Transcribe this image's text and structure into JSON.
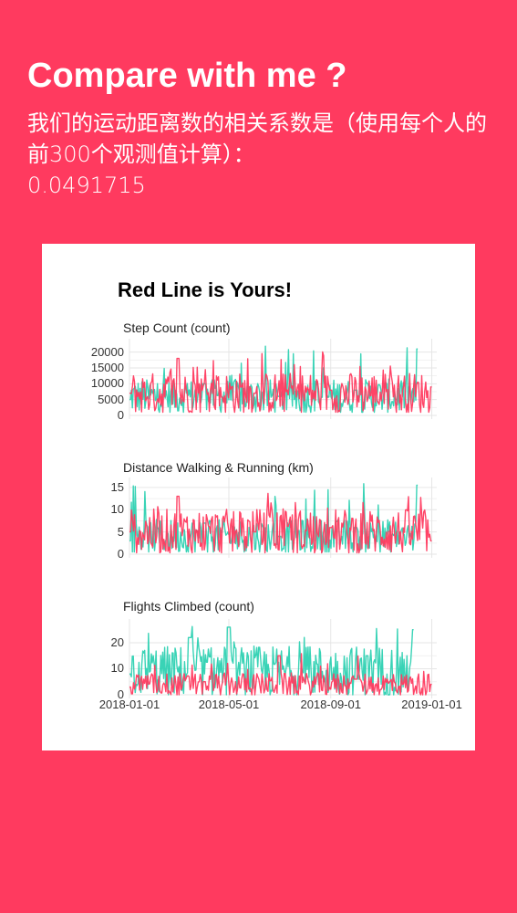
{
  "header": {
    "title": "Compare with me ?",
    "description": "我们的运动距离数的相关系数是（使用每个人的前300个观测值计算）：",
    "correlation": "0.0491715"
  },
  "colors": {
    "background": "#ff3a5f",
    "yours": "#ff3a5f",
    "mine": "#2ed1b2",
    "grid": "#e6e6e6"
  },
  "chart_data": {
    "type": "line",
    "title": "Red Line is Yours!",
    "x_range": [
      "2018-01-01",
      "2019-01-07"
    ],
    "x_ticks": [
      "2018-01-01",
      "2018-05-01",
      "2018-09-01",
      "2019-01-01"
    ],
    "panels": [
      {
        "title": "Step Count (count)",
        "ylim": [
          0,
          22500
        ],
        "y_ticks": [
          "0",
          "5000",
          "10000",
          "15000",
          "20000"
        ],
        "series": [
          {
            "color": "#2ed1b2",
            "min": 1000,
            "max": 22000,
            "mean": 6000,
            "sample_x": [
              "2018-01-01",
              "2018-04-01",
              "2018-07-01",
              "2018-10-01",
              "2018-12-15"
            ],
            "sample_y": [
              5000,
              10000,
              6000,
              8000,
              21000
            ]
          },
          {
            "color": "#ff3a5f",
            "min": 1000,
            "max": 21000,
            "mean": 7000,
            "sample_x": [
              "2018-01-01",
              "2018-03-01",
              "2018-06-01",
              "2018-09-01",
              "2019-01-01"
            ],
            "sample_y": [
              7000,
              18000,
              7000,
              8000,
              9000
            ]
          }
        ]
      },
      {
        "title": "Distance Walking & Running (km)",
        "ylim": [
          0,
          16
        ],
        "y_ticks": [
          "0",
          "5",
          "10",
          "15"
        ],
        "series": [
          {
            "color": "#2ed1b2",
            "min": 0.5,
            "max": 16,
            "mean": 4,
            "sample_x": [
              "2018-01-01",
              "2018-04-01",
              "2018-07-01",
              "2018-10-01",
              "2018-12-15"
            ],
            "sample_y": [
              3,
              7,
              4,
              6,
              15.5
            ]
          },
          {
            "color": "#ff3a5f",
            "min": 0.3,
            "max": 14,
            "mean": 5,
            "sample_x": [
              "2018-01-01",
              "2018-03-01",
              "2018-06-01",
              "2018-09-01",
              "2019-01-01"
            ],
            "sample_y": [
              5,
              13,
              5,
              6,
              3
            ]
          }
        ]
      },
      {
        "title": "Flights Climbed (count)",
        "ylim": [
          0,
          27
        ],
        "y_ticks": [
          "0",
          "10",
          "20"
        ],
        "series": [
          {
            "color": "#2ed1b2",
            "min": 0,
            "max": 27,
            "mean": 9,
            "sample_x": [
              "2018-01-01",
              "2018-03-15",
              "2018-05-01",
              "2018-10-15",
              "2018-12-10"
            ],
            "sample_y": [
              8,
              22,
              26,
              15,
              25
            ]
          },
          {
            "color": "#ff3a5f",
            "min": 0,
            "max": 16,
            "mean": 4,
            "sample_x": [
              "2018-01-01",
              "2018-04-01",
              "2018-07-01",
              "2018-10-01",
              "2019-01-01"
            ],
            "sample_y": [
              3,
              5,
              15,
              6,
              4
            ]
          }
        ]
      }
    ]
  }
}
